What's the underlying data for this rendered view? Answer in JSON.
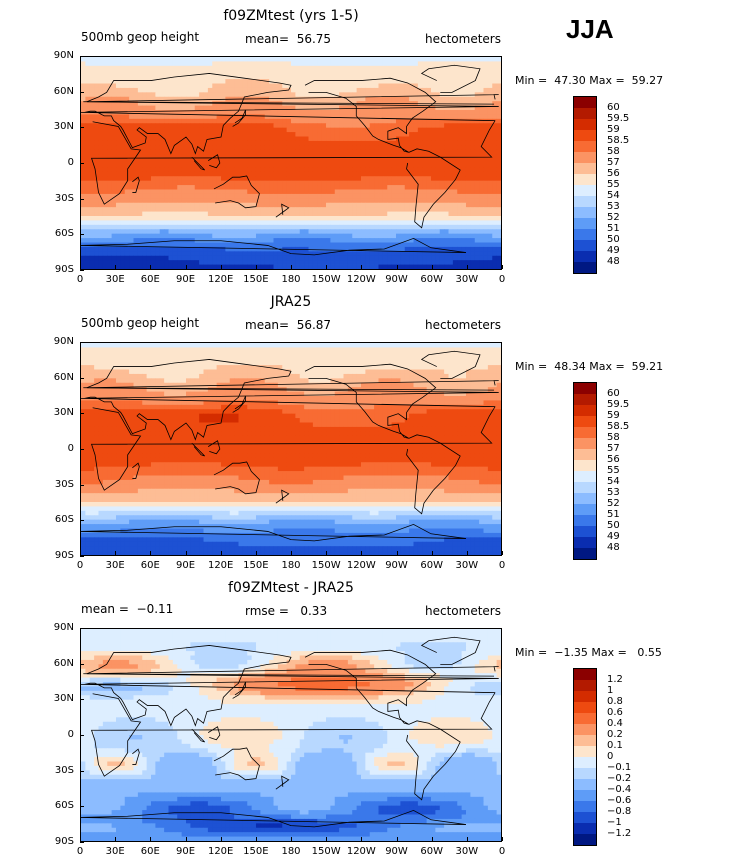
{
  "season": "JJA",
  "x_ticks": [
    "0",
    "30E",
    "60E",
    "90E",
    "120E",
    "150E",
    "180",
    "150W",
    "120W",
    "90W",
    "60W",
    "30W",
    "0"
  ],
  "y_ticks": [
    "90N",
    "60N",
    "30N",
    "0",
    "30S",
    "60S",
    "90S"
  ],
  "panels": [
    {
      "title": "f09ZMtest (yrs 1-5)",
      "sub_left": "500mb geop height",
      "sub_mid": "mean=  56.75",
      "sub_right": "hectometers",
      "minmax": "Min =  47.30 Max =  59.27",
      "colorbar_labels": [
        "60",
        "59.5",
        "59",
        "58.5",
        "58",
        "57",
        "56",
        "55",
        "54",
        "53",
        "52",
        "51",
        "50",
        "49",
        "48"
      ],
      "colorbar_colors": [
        "#8b0000",
        "#b31a00",
        "#d42c00",
        "#ee4a10",
        "#f86b33",
        "#fb9363",
        "#fdbd95",
        "#fde5cc",
        "#ddeeff",
        "#b8d8ff",
        "#8cbcff",
        "#5e9cf7",
        "#3a78ea",
        "#1d51d3",
        "#0a2db0",
        "#001882"
      ]
    },
    {
      "title": "JRA25",
      "sub_left": "500mb geop height",
      "sub_mid": "mean=  56.87",
      "sub_right": "hectometers",
      "minmax": "Min =  48.34 Max =  59.21",
      "colorbar_labels": [
        "60",
        "59.5",
        "59",
        "58.5",
        "58",
        "57",
        "56",
        "55",
        "54",
        "53",
        "52",
        "51",
        "50",
        "49",
        "48"
      ],
      "colorbar_colors": [
        "#8b0000",
        "#b31a00",
        "#d42c00",
        "#ee4a10",
        "#f86b33",
        "#fb9363",
        "#fdbd95",
        "#fde5cc",
        "#ddeeff",
        "#b8d8ff",
        "#8cbcff",
        "#5e9cf7",
        "#3a78ea",
        "#1d51d3",
        "#0a2db0",
        "#001882"
      ]
    },
    {
      "title": "f09ZMtest - JRA25",
      "sub_left": "mean =  −0.11",
      "sub_mid": "rmse =   0.33",
      "sub_right": "hectometers",
      "minmax": "Min =  −1.35 Max =   0.55",
      "colorbar_labels": [
        "1.2",
        "1",
        "0.8",
        "0.6",
        "0.4",
        "0.2",
        "0.1",
        "0",
        "−0.1",
        "−0.2",
        "−0.4",
        "−0.6",
        "−0.8",
        "−1",
        "−1.2"
      ],
      "colorbar_colors": [
        "#8b0000",
        "#b31a00",
        "#d42c00",
        "#ee4a10",
        "#f86b33",
        "#fb9363",
        "#fdbd95",
        "#fde5cc",
        "#ddeeff",
        "#b8d8ff",
        "#8cbcff",
        "#5e9cf7",
        "#3a78ea",
        "#1d51d3",
        "#0a2db0",
        "#001882"
      ]
    }
  ],
  "chart_data": [
    {
      "type": "heatmap",
      "title": "f09ZMtest (yrs 1-5)",
      "field": "500mb geop height",
      "units": "hectometers",
      "mean": 56.75,
      "min": 47.3,
      "max": 59.27,
      "xlim": [
        0,
        360
      ],
      "ylim": [
        -90,
        90
      ],
      "zonal_profile": {
        "lat": [
          90,
          75,
          60,
          45,
          30,
          15,
          0,
          -15,
          -30,
          -45,
          -60,
          -75,
          -90
        ],
        "value": [
          54.8,
          55.3,
          56.2,
          57.4,
          58.6,
          58.8,
          58.7,
          58.5,
          57.6,
          55.8,
          52.0,
          49.6,
          48.8
        ]
      }
    },
    {
      "type": "heatmap",
      "title": "JRA25",
      "field": "500mb geop height",
      "units": "hectometers",
      "mean": 56.87,
      "min": 48.34,
      "max": 59.21,
      "xlim": [
        0,
        360
      ],
      "ylim": [
        -90,
        90
      ],
      "zonal_profile": {
        "lat": [
          90,
          75,
          60,
          45,
          30,
          15,
          0,
          -15,
          -30,
          -45,
          -60,
          -75,
          -90
        ],
        "value": [
          54.9,
          55.5,
          56.4,
          57.5,
          58.7,
          58.8,
          58.7,
          58.5,
          57.7,
          55.9,
          52.3,
          50.2,
          49.4
        ]
      }
    },
    {
      "type": "heatmap",
      "title": "f09ZMtest - JRA25",
      "field": "difference",
      "units": "hectometers",
      "mean": -0.11,
      "rmse": 0.33,
      "min": -1.35,
      "max": 0.55,
      "xlim": [
        0,
        360
      ],
      "ylim": [
        -90,
        90
      ],
      "zonal_profile": {
        "lat": [
          90,
          75,
          60,
          45,
          30,
          15,
          0,
          -15,
          -30,
          -45,
          -60,
          -75,
          -90
        ],
        "value": [
          -0.05,
          -0.1,
          0.05,
          0.15,
          0.0,
          -0.05,
          -0.05,
          -0.1,
          -0.15,
          -0.3,
          -0.6,
          -0.7,
          -0.5
        ]
      }
    }
  ]
}
